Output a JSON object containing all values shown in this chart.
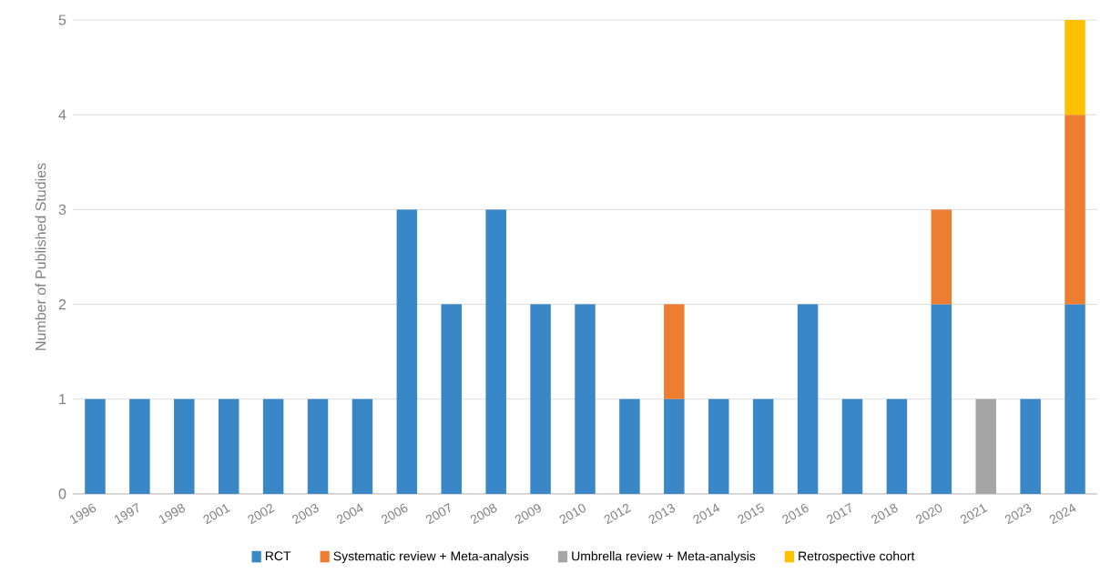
{
  "chart_data": {
    "type": "bar",
    "stacked": true,
    "ylabel": "Number of Published Studies",
    "categories": [
      "1996",
      "1997",
      "1998",
      "2001",
      "2002",
      "2003",
      "2004",
      "2006",
      "2007",
      "2008",
      "2009",
      "2010",
      "2012",
      "2013",
      "2014",
      "2015",
      "2016",
      "2017",
      "2018",
      "2020",
      "2021",
      "2023",
      "2024"
    ],
    "series": [
      {
        "name": "RCT",
        "color": "#3a87c8",
        "values": [
          1,
          1,
          1,
          1,
          1,
          1,
          1,
          3,
          2,
          3,
          2,
          2,
          1,
          1,
          1,
          1,
          2,
          1,
          1,
          2,
          null,
          1,
          2
        ]
      },
      {
        "name": "Systematic review + Meta-analysis",
        "color": "#ed7d31",
        "values": [
          null,
          null,
          null,
          null,
          null,
          null,
          null,
          null,
          null,
          null,
          null,
          null,
          null,
          1,
          null,
          null,
          null,
          null,
          null,
          1,
          null,
          null,
          2
        ]
      },
      {
        "name": "Umbrella review + Meta-analysis",
        "color": "#a5a5a5",
        "values": [
          null,
          null,
          null,
          null,
          null,
          null,
          null,
          null,
          null,
          null,
          null,
          null,
          null,
          null,
          null,
          null,
          null,
          null,
          null,
          null,
          1,
          null,
          null
        ]
      },
      {
        "name": "Retrospective cohort",
        "color": "#ffc000",
        "values": [
          null,
          null,
          null,
          null,
          null,
          null,
          null,
          null,
          null,
          null,
          null,
          null,
          null,
          null,
          null,
          null,
          null,
          null,
          null,
          null,
          null,
          null,
          1
        ]
      }
    ],
    "ylim": [
      0,
      5
    ],
    "yticks": [
      0,
      1,
      2,
      3,
      4,
      5
    ],
    "grid": "y",
    "legend": "bottom"
  }
}
